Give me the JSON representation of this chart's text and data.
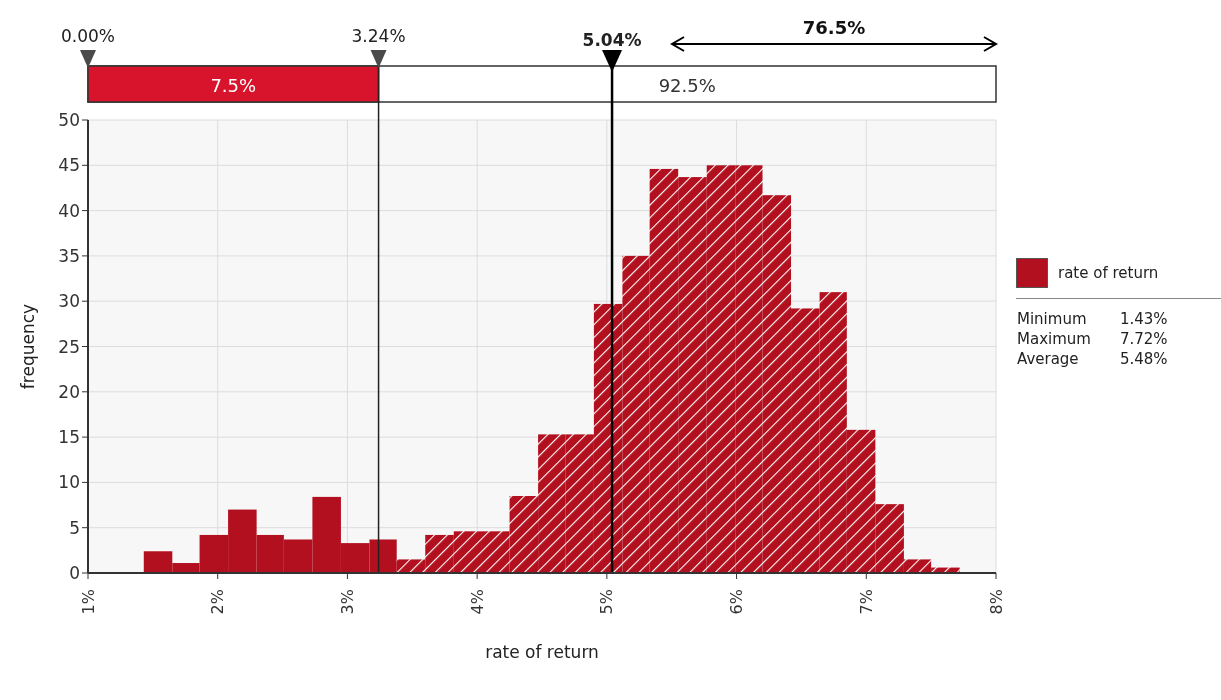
{
  "chart_data": {
    "type": "histogram",
    "xlabel": "rate of return",
    "ylabel": "frequency",
    "bins": [
      1.43,
      1.65,
      1.86,
      2.08,
      2.3,
      2.51,
      2.73,
      2.95,
      3.17,
      3.38,
      3.6,
      3.82,
      4.03,
      4.25,
      4.47,
      4.68,
      4.9,
      5.12,
      5.33,
      5.55,
      5.77,
      5.99,
      6.2,
      6.42,
      6.64,
      6.85,
      7.07,
      7.29,
      7.5,
      7.72
    ],
    "series": [
      {
        "name": "rate of return",
        "color": "#b3101f",
        "values": [
          2.4,
          1.1,
          4.2,
          7.0,
          4.2,
          3.7,
          8.4,
          3.3,
          3.7,
          1.5,
          4.2,
          4.6,
          4.6,
          8.5,
          15.3,
          15.3,
          29.7,
          35.0,
          44.6,
          43.7,
          45.0,
          45.0,
          41.7,
          29.2,
          31.0,
          15.8,
          7.6,
          1.5,
          0.6
        ]
      }
    ],
    "xlim": [
      1,
      8
    ],
    "xticks": [
      {
        "value": 1,
        "label": "1%"
      },
      {
        "value": 2,
        "label": "2%"
      },
      {
        "value": 3,
        "label": "3%"
      },
      {
        "value": 4,
        "label": "4%"
      },
      {
        "value": 5,
        "label": "5%"
      },
      {
        "value": 6,
        "label": "6%"
      },
      {
        "value": 7,
        "label": "7%"
      },
      {
        "value": 8,
        "label": "8%"
      }
    ],
    "ylim": [
      0,
      50
    ],
    "yticks": [
      0,
      5,
      10,
      15,
      20,
      25,
      30,
      35,
      40,
      45,
      50
    ],
    "ref_lines": [
      {
        "axis": "x",
        "value": 3.24,
        "label": "3.24%",
        "color": "#222222"
      },
      {
        "axis": "x",
        "value": 5.04,
        "label": "5.04%",
        "color": "#000000"
      }
    ],
    "annotations": [
      "0.00%",
      "7.5%",
      "92.5%",
      "76.5%",
      "Minimum 1.43%",
      "Maximum 7.72%",
      "Average 5.48%"
    ],
    "grid": true,
    "legend": "right"
  }
}
